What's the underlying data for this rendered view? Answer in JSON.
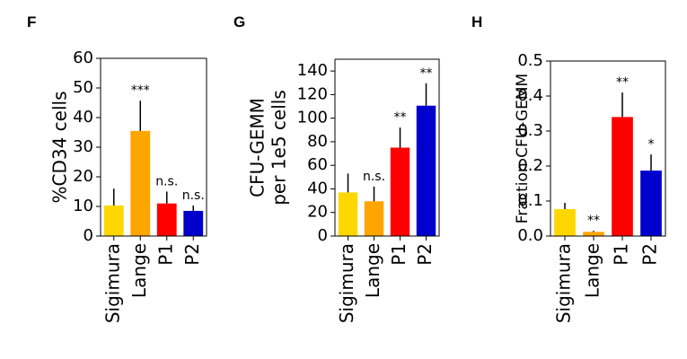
{
  "chart_data": [
    {
      "type": "bar",
      "panel": "F",
      "ylabel": [
        "%CD34 cells"
      ],
      "categories": [
        "Sigimura",
        "Lange",
        "P1",
        "P2"
      ],
      "colors": [
        "#ffd700",
        "#ffa500",
        "#ff0000",
        "#0000cd"
      ],
      "values": [
        10.3,
        35.5,
        11,
        8.5
      ],
      "errors": [
        5.7,
        10.2,
        4,
        1.8
      ],
      "significance": [
        null,
        "***",
        "n.s.",
        "n.s."
      ],
      "ylim": [
        0,
        60
      ],
      "yticks": [
        0,
        10,
        20,
        30,
        40,
        50,
        60
      ]
    },
    {
      "type": "bar",
      "panel": "G",
      "ylabel": [
        "CFU-GEMM",
        "per 1e5 cells"
      ],
      "categories": [
        "Sigimura",
        "Lange",
        "P1",
        "P2"
      ],
      "colors": [
        "#ffd700",
        "#ffa500",
        "#ff0000",
        "#0000cd"
      ],
      "values": [
        37,
        29.5,
        75,
        110.6
      ],
      "errors": [
        16,
        12.5,
        17,
        19
      ],
      "significance": [
        null,
        "n.s.",
        "**",
        "**"
      ],
      "ylim": [
        0,
        150
      ],
      "yticks": [
        0,
        20,
        40,
        60,
        80,
        100,
        120,
        140
      ]
    },
    {
      "type": "bar",
      "panel": "H",
      "ylabel": [
        "Fraction CFU-GEMM"
      ],
      "categories": [
        "Sigimura",
        "Lange",
        "P1",
        "P2"
      ],
      "colors": [
        "#ffd700",
        "#ffa500",
        "#ff0000",
        "#0000cd"
      ],
      "values": [
        0.077,
        0.012,
        0.34,
        0.187
      ],
      "errors": [
        0.018,
        0.003,
        0.07,
        0.046
      ],
      "significance": [
        null,
        "**",
        "**",
        "*"
      ],
      "ylim": [
        0,
        0.5
      ],
      "yticks": [
        {
          "value": 0,
          "label": "0.0"
        },
        0.1,
        0.2,
        0.3,
        0.4,
        0.5
      ]
    }
  ]
}
